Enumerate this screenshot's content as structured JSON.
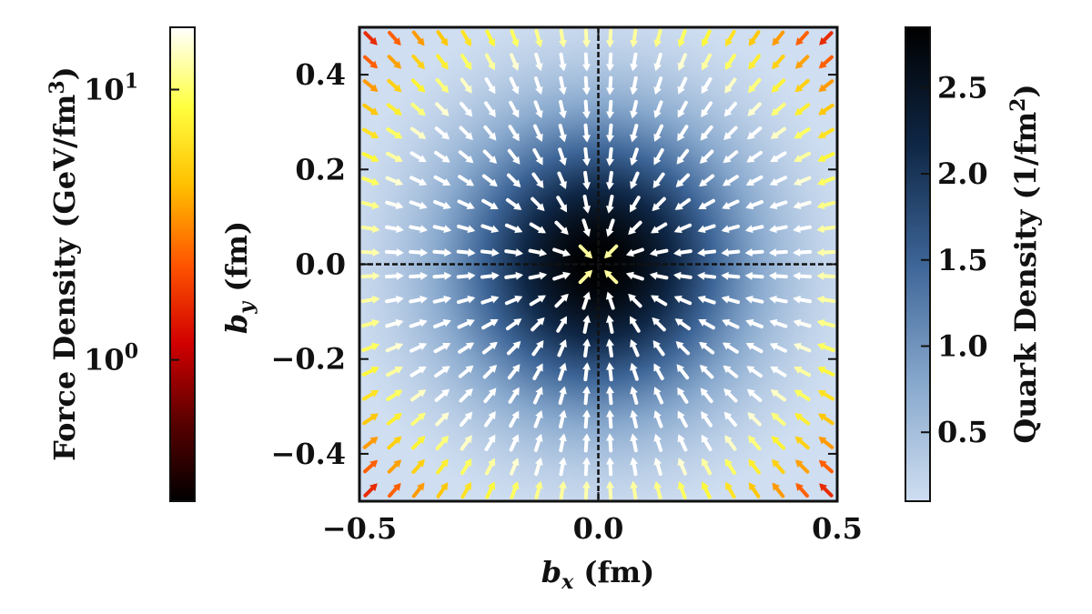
{
  "chart_data": {
    "type": "heatmap",
    "title": "",
    "xlabel": "b_x (fm)",
    "ylabel": "b_y (fm)",
    "xlabel_parts": {
      "var": "b",
      "sub": "x",
      "unit": " (fm)"
    },
    "ylabel_parts": {
      "var": "b",
      "sub": "y",
      "unit": " (fm)"
    },
    "xlim": [
      -0.5,
      0.5
    ],
    "ylim": [
      -0.5,
      0.5
    ],
    "xticks": [
      -0.5,
      0.0,
      0.5
    ],
    "xtick_labels": [
      "−0.5",
      "0.0",
      "0.5"
    ],
    "yticks": [
      0.4,
      0.2,
      0.0,
      -0.2,
      -0.4
    ],
    "ytick_labels": [
      "0.4",
      "0.2",
      "0.0",
      "−0.2",
      "−0.4"
    ],
    "reference_lines": {
      "x": 0.0,
      "y": 0.0
    },
    "density": {
      "name": "Quark Density (1/fm²)",
      "colorbar_label": "Quark Density (1/fm²)",
      "colorbar_label_parts": {
        "main": "Quark Density (1/fm",
        "sup": "2",
        "end": ")"
      },
      "range": [
        0.1,
        2.85
      ],
      "ticks": [
        2.5,
        2.0,
        1.5,
        1.0,
        0.5
      ],
      "tick_labels": [
        "2.5",
        "2.0",
        "1.5",
        "1.0",
        "0.5"
      ],
      "colormap": [
        "#cfdef1",
        "#87a8cd",
        "#3d6597",
        "#0f2746",
        "#000000"
      ],
      "peak": 2.85,
      "width_fm": 0.21
    },
    "force": {
      "name": "Force Density (GeV/fm³)",
      "colorbar_label": "Force Density (GeV/fm³)",
      "colorbar_label_parts": {
        "main": "Force Density (GeV/fm",
        "sup": "3",
        "end": ")"
      },
      "scale": "log",
      "range": [
        0.3,
        17
      ],
      "ticks": [
        10,
        1
      ],
      "tick_labels": [
        {
          "base": "10",
          "exp": "1"
        },
        {
          "base": "10",
          "exp": "0"
        }
      ],
      "colormap": [
        "#000000",
        "#5a0000",
        "#d10000",
        "#ff5500",
        "#ffc000",
        "#ffff40",
        "#ffffff"
      ],
      "direction": "inward",
      "arrow_grid_step_fm": 0.05,
      "arrow_grid_start_fm": -0.475
    }
  }
}
